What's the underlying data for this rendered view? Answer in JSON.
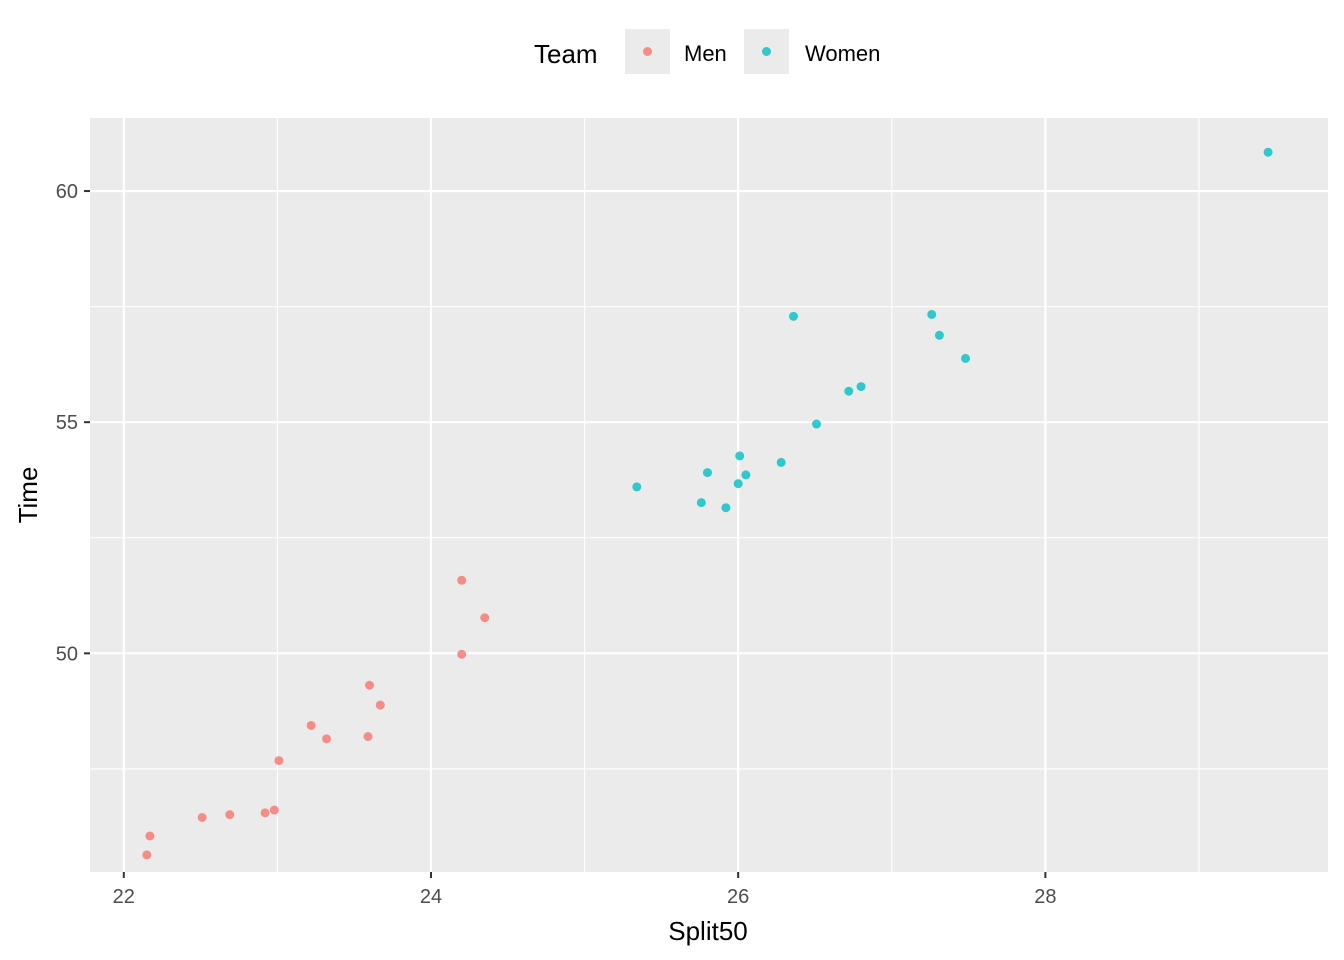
{
  "chart_data": {
    "type": "scatter",
    "title": "",
    "xlabel": "Split50",
    "ylabel": "Time",
    "xlim": [
      21.78,
      29.84
    ],
    "ylim": [
      45.27,
      61.58
    ],
    "x_ticks": [
      22,
      24,
      26,
      28
    ],
    "y_ticks": [
      50,
      55,
      60
    ],
    "grid": true,
    "legend": {
      "title": "Team",
      "position": "top"
    },
    "series": [
      {
        "name": "Men",
        "color": "#F8766D",
        "points": [
          {
            "x": 22.15,
            "y": 45.64
          },
          {
            "x": 22.17,
            "y": 46.05
          },
          {
            "x": 22.51,
            "y": 46.45
          },
          {
            "x": 22.69,
            "y": 46.51
          },
          {
            "x": 22.92,
            "y": 46.55
          },
          {
            "x": 22.98,
            "y": 46.61
          },
          {
            "x": 23.01,
            "y": 47.68
          },
          {
            "x": 23.22,
            "y": 48.44
          },
          {
            "x": 23.32,
            "y": 48.15
          },
          {
            "x": 23.59,
            "y": 48.2
          },
          {
            "x": 23.6,
            "y": 49.31
          },
          {
            "x": 23.67,
            "y": 48.88
          },
          {
            "x": 24.2,
            "y": 51.58
          },
          {
            "x": 24.2,
            "y": 49.98
          },
          {
            "x": 24.35,
            "y": 50.77
          }
        ]
      },
      {
        "name": "Women",
        "color": "#00BFC4",
        "points": [
          {
            "x": 25.34,
            "y": 53.6
          },
          {
            "x": 25.76,
            "y": 53.26
          },
          {
            "x": 25.8,
            "y": 53.91
          },
          {
            "x": 25.92,
            "y": 53.15
          },
          {
            "x": 26.0,
            "y": 53.67
          },
          {
            "x": 26.01,
            "y": 54.27
          },
          {
            "x": 26.05,
            "y": 53.86
          },
          {
            "x": 26.28,
            "y": 54.13
          },
          {
            "x": 26.36,
            "y": 57.29
          },
          {
            "x": 26.51,
            "y": 54.96
          },
          {
            "x": 26.72,
            "y": 55.67
          },
          {
            "x": 26.8,
            "y": 55.77
          },
          {
            "x": 27.26,
            "y": 57.33
          },
          {
            "x": 27.31,
            "y": 56.88
          },
          {
            "x": 27.48,
            "y": 56.38
          },
          {
            "x": 29.45,
            "y": 60.84
          }
        ]
      }
    ]
  }
}
